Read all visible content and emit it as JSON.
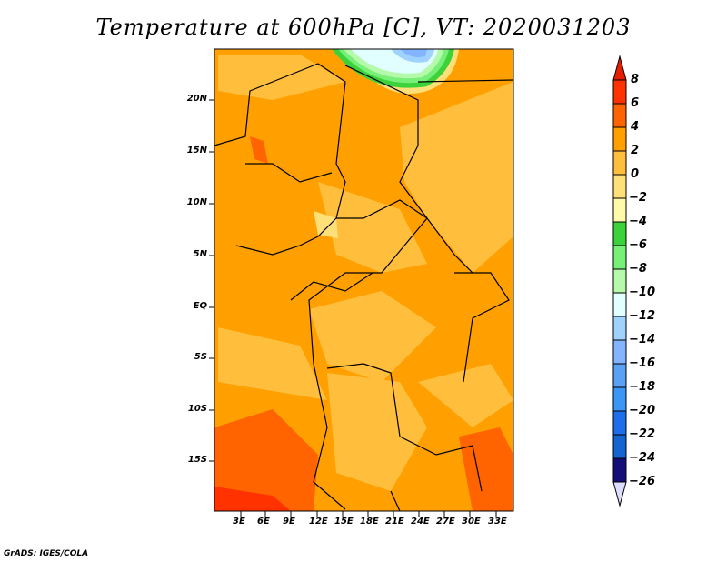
{
  "title": "Temperature at 600hPa [C], VT: 2020031203",
  "credit": "GrADS: IGES/COLA",
  "lat_labels": [
    "20N",
    "15N",
    "10N",
    "5N",
    "EQ",
    "5S",
    "10S",
    "15S"
  ],
  "lon_labels": [
    "3E",
    "6E",
    "9E",
    "12E",
    "15E",
    "18E",
    "21E",
    "24E",
    "27E",
    "30E",
    "33E"
  ],
  "colorbar": {
    "labels": [
      "8",
      "6",
      "4",
      "2",
      "0",
      "-2",
      "-4",
      "-6",
      "-8",
      "-10",
      "-12",
      "-14",
      "-16",
      "-18",
      "-20",
      "-22",
      "-24",
      "-26"
    ],
    "top_color": "#e61e00",
    "bottom_color": "#dcdcff",
    "colors": [
      "#ff3200",
      "#ff6400",
      "#ffa000",
      "#ffbe3c",
      "#ffe078",
      "#fffaaa",
      "#3cd23c",
      "#78f078",
      "#b4faaa",
      "#e1ffff",
      "#a0d2ff",
      "#82b4ff",
      "#5aa0f5",
      "#3c96f5",
      "#1e6eeb",
      "#1464d2",
      "#140f78"
    ]
  },
  "palette": {
    "base": "#ffa000",
    "warm": "#ff6400",
    "hot": "#ff3200",
    "mild": "#ffbe3c",
    "cool": "#ffe078"
  }
}
